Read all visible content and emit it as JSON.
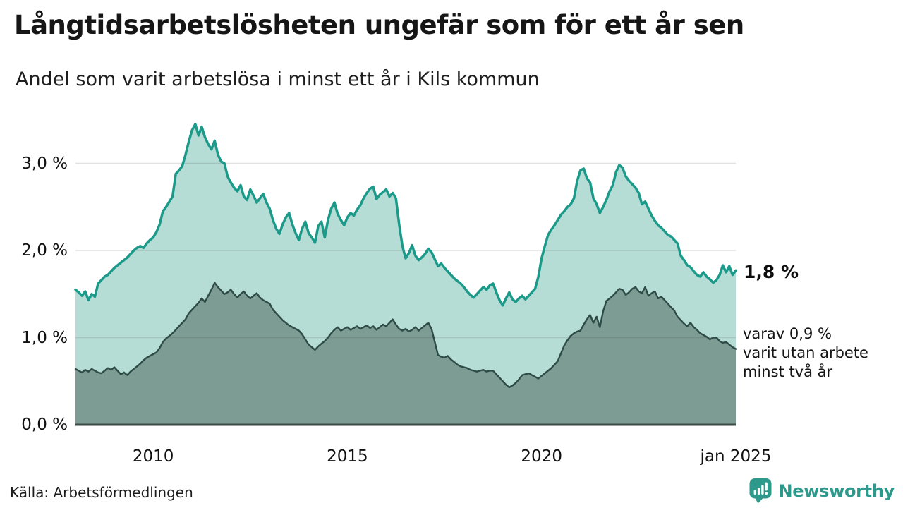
{
  "header": {
    "title": "Långtidsarbetslösheten ungefär som för ett år sen",
    "subtitle": "Andel som varit arbetslösa i minst ett år i Kils kommun"
  },
  "chart_data": {
    "type": "area",
    "title": "Långtidsarbetslösheten ungefär som för ett år sen",
    "subtitle": "Andel som varit arbetslösa i minst ett år i Kils kommun",
    "x_unit": "month",
    "x_start_year": 2008,
    "x_end_year": 2025,
    "x_step_months": 1,
    "ylim": [
      0,
      3.5
    ],
    "grid": "horizontal",
    "gridline_color": "#dddddd",
    "baseline_color": "#3c4b46",
    "y_ticks": [
      {
        "label": "0,0 %",
        "value": 0
      },
      {
        "label": "1,0 %",
        "value": 1
      },
      {
        "label": "2,0 %",
        "value": 2
      },
      {
        "label": "3,0 %",
        "value": 3
      }
    ],
    "x_ticks": [
      {
        "label": "2010",
        "year": 2010
      },
      {
        "label": "2015",
        "year": 2015
      },
      {
        "label": "2020",
        "year": 2020
      },
      {
        "label": "jan 2025",
        "year": 2025
      }
    ],
    "series": [
      {
        "name": "Andel arbetslösa minst ett år (totalt)",
        "line_color": "#1b9a8a",
        "fill_color": "#b5dcd5",
        "latest_value_label": "1,8 %",
        "values": [
          1.55,
          1.52,
          1.48,
          1.53,
          1.43,
          1.5,
          1.47,
          1.62,
          1.66,
          1.7,
          1.72,
          1.76,
          1.8,
          1.83,
          1.86,
          1.89,
          1.92,
          1.96,
          2.0,
          2.03,
          2.05,
          2.03,
          2.08,
          2.12,
          2.15,
          2.21,
          2.3,
          2.45,
          2.5,
          2.56,
          2.62,
          2.88,
          2.92,
          2.97,
          3.1,
          3.25,
          3.38,
          3.45,
          3.32,
          3.42,
          3.3,
          3.22,
          3.16,
          3.26,
          3.1,
          3.02,
          3.0,
          2.85,
          2.78,
          2.72,
          2.68,
          2.75,
          2.62,
          2.58,
          2.7,
          2.63,
          2.55,
          2.6,
          2.65,
          2.55,
          2.48,
          2.35,
          2.25,
          2.19,
          2.3,
          2.38,
          2.43,
          2.3,
          2.2,
          2.12,
          2.25,
          2.33,
          2.2,
          2.15,
          2.09,
          2.28,
          2.33,
          2.15,
          2.35,
          2.48,
          2.55,
          2.42,
          2.35,
          2.29,
          2.38,
          2.43,
          2.4,
          2.47,
          2.52,
          2.6,
          2.66,
          2.71,
          2.73,
          2.59,
          2.64,
          2.67,
          2.7,
          2.62,
          2.66,
          2.6,
          2.3,
          2.05,
          1.91,
          1.97,
          2.06,
          1.94,
          1.89,
          1.92,
          1.96,
          2.02,
          1.98,
          1.9,
          1.82,
          1.85,
          1.8,
          1.76,
          1.72,
          1.68,
          1.65,
          1.62,
          1.58,
          1.53,
          1.49,
          1.46,
          1.5,
          1.54,
          1.58,
          1.55,
          1.6,
          1.62,
          1.52,
          1.43,
          1.37,
          1.45,
          1.52,
          1.44,
          1.41,
          1.45,
          1.48,
          1.44,
          1.48,
          1.52,
          1.56,
          1.7,
          1.91,
          2.05,
          2.18,
          2.24,
          2.29,
          2.35,
          2.41,
          2.45,
          2.5,
          2.53,
          2.6,
          2.8,
          2.92,
          2.94,
          2.83,
          2.78,
          2.6,
          2.53,
          2.43,
          2.5,
          2.58,
          2.68,
          2.75,
          2.9,
          2.98,
          2.95,
          2.85,
          2.8,
          2.76,
          2.72,
          2.66,
          2.53,
          2.56,
          2.48,
          2.4,
          2.34,
          2.29,
          2.26,
          2.22,
          2.18,
          2.16,
          2.12,
          2.08,
          1.94,
          1.89,
          1.83,
          1.81,
          1.76,
          1.72,
          1.7,
          1.75,
          1.7,
          1.67,
          1.63,
          1.66,
          1.72,
          1.83,
          1.75,
          1.82,
          1.72,
          1.77
        ]
      },
      {
        "name": "varav utan arbete minst två år",
        "line_color": "#2e4b46",
        "fill_color": "#7d9c94",
        "latest_value_label": "0,9 %",
        "values": [
          0.64,
          0.62,
          0.6,
          0.63,
          0.61,
          0.64,
          0.62,
          0.6,
          0.59,
          0.62,
          0.65,
          0.63,
          0.66,
          0.62,
          0.58,
          0.6,
          0.57,
          0.61,
          0.64,
          0.67,
          0.7,
          0.74,
          0.77,
          0.79,
          0.81,
          0.83,
          0.88,
          0.95,
          0.99,
          1.02,
          1.05,
          1.09,
          1.13,
          1.17,
          1.21,
          1.28,
          1.32,
          1.36,
          1.4,
          1.45,
          1.41,
          1.48,
          1.55,
          1.63,
          1.58,
          1.54,
          1.5,
          1.52,
          1.55,
          1.5,
          1.46,
          1.5,
          1.53,
          1.48,
          1.45,
          1.48,
          1.51,
          1.46,
          1.43,
          1.41,
          1.39,
          1.32,
          1.28,
          1.24,
          1.2,
          1.17,
          1.14,
          1.12,
          1.1,
          1.08,
          1.04,
          0.98,
          0.92,
          0.89,
          0.86,
          0.9,
          0.93,
          0.96,
          1.0,
          1.05,
          1.09,
          1.12,
          1.08,
          1.1,
          1.12,
          1.09,
          1.11,
          1.13,
          1.1,
          1.12,
          1.14,
          1.11,
          1.13,
          1.09,
          1.12,
          1.15,
          1.13,
          1.17,
          1.21,
          1.15,
          1.1,
          1.08,
          1.1,
          1.07,
          1.09,
          1.12,
          1.08,
          1.11,
          1.14,
          1.17,
          1.1,
          0.95,
          0.8,
          0.78,
          0.77,
          0.79,
          0.75,
          0.72,
          0.69,
          0.67,
          0.66,
          0.65,
          0.63,
          0.62,
          0.61,
          0.62,
          0.63,
          0.61,
          0.62,
          0.62,
          0.58,
          0.54,
          0.5,
          0.46,
          0.43,
          0.45,
          0.48,
          0.52,
          0.57,
          0.58,
          0.59,
          0.57,
          0.55,
          0.53,
          0.56,
          0.59,
          0.62,
          0.65,
          0.69,
          0.73,
          0.82,
          0.91,
          0.97,
          1.02,
          1.05,
          1.07,
          1.08,
          1.15,
          1.21,
          1.26,
          1.17,
          1.24,
          1.12,
          1.3,
          1.42,
          1.45,
          1.48,
          1.52,
          1.56,
          1.55,
          1.49,
          1.52,
          1.56,
          1.58,
          1.53,
          1.51,
          1.58,
          1.48,
          1.51,
          1.53,
          1.45,
          1.47,
          1.43,
          1.39,
          1.35,
          1.31,
          1.24,
          1.2,
          1.16,
          1.13,
          1.17,
          1.12,
          1.09,
          1.05,
          1.03,
          1.01,
          0.98,
          1.0,
          1.0,
          0.96,
          0.94,
          0.95,
          0.92,
          0.89,
          0.87
        ]
      }
    ],
    "annotations": {
      "total_latest": "1,8 %",
      "two_year": [
        "varav 0,9 %",
        "varit utan arbete",
        "minst två år"
      ]
    },
    "legend_position": "none"
  },
  "footer": {
    "source": "Källa: Arbetsförmedlingen",
    "logo_text": "Newsworthy",
    "logo_color": "#2c998b"
  }
}
